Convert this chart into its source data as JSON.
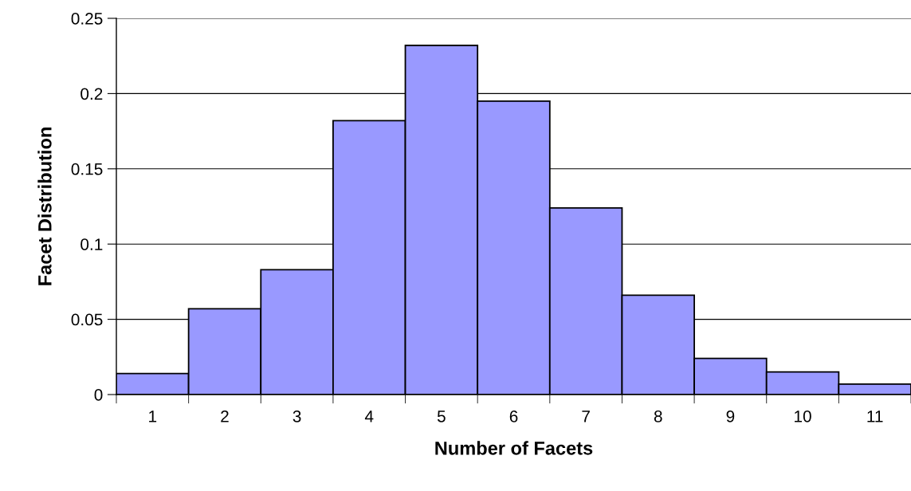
{
  "chart_data": {
    "type": "bar",
    "xlabel": "Number of Facets",
    "ylabel": "Facet Distribution",
    "categories": [
      "1",
      "2",
      "3",
      "4",
      "5",
      "6",
      "7",
      "8",
      "9",
      "10",
      "11"
    ],
    "values": [
      0.014,
      0.057,
      0.083,
      0.182,
      0.232,
      0.195,
      0.124,
      0.066,
      0.024,
      0.015,
      0.007
    ],
    "color": "#9999ff",
    "ylim": [
      0,
      0.25
    ],
    "yticks": [
      {
        "value": 0,
        "label": "0"
      },
      0.05,
      0.1,
      0.15,
      0.2,
      0.25
    ],
    "grid": "y",
    "legend": false
  }
}
